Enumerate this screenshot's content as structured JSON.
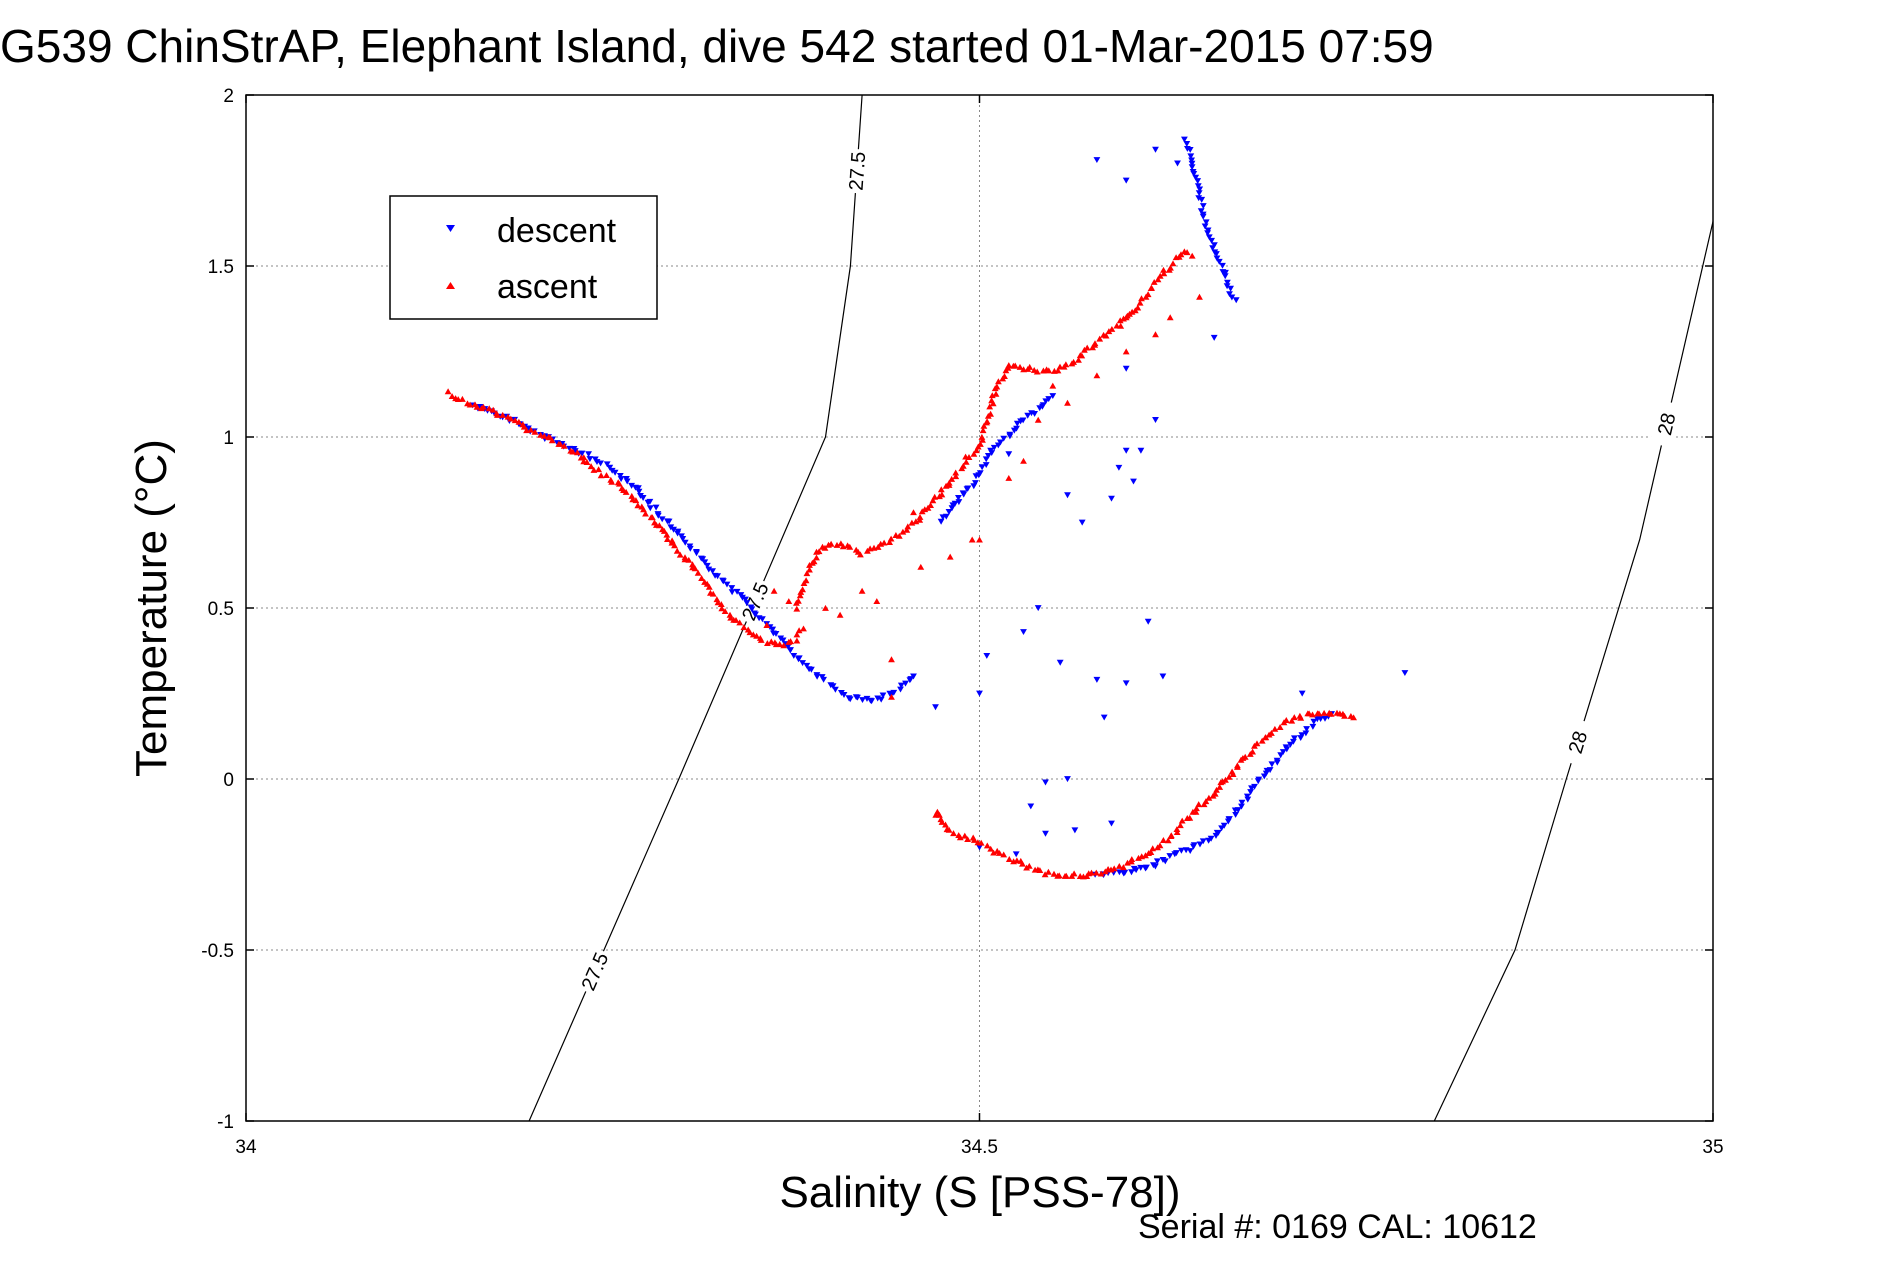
{
  "title": "G539 ChinStrAP, Elephant Island, dive 542 started 01-Mar-2015 07:59",
  "footer": "Serial #: 0169 CAL: 10612",
  "colors": {
    "descent": "#0000ff",
    "ascent": "#ff0000",
    "axis": "#000000",
    "grid": "#888888"
  },
  "chart_data": {
    "type": "scatter",
    "title": "G539 ChinStrAP, Elephant Island, dive 542 started 01-Mar-2015 07:59",
    "xlabel": "Salinity (S [PSS-78])",
    "ylabel": "Temperature (°C)",
    "xlim": [
      34,
      35
    ],
    "ylim": [
      -1,
      2
    ],
    "xticks": [
      34,
      34.5,
      35
    ],
    "xtick_labels": [
      "34",
      "34.5",
      "35"
    ],
    "yticks": [
      -1,
      -0.5,
      0,
      0.5,
      1,
      1.5,
      2
    ],
    "ytick_labels": [
      "-1",
      "-0.5",
      "0",
      "0.5",
      "1",
      "1.5",
      "2"
    ],
    "grid": true,
    "legend_position": "top-left",
    "contour_labels": [
      "27.5",
      "27.5",
      "27.5",
      "28",
      "28"
    ],
    "isopycnals": [
      {
        "label": "27.5",
        "points": [
          [
            34.193,
            -1.0
          ],
          [
            34.295,
            0.0
          ],
          [
            34.395,
            1.0
          ],
          [
            34.412,
            1.5
          ],
          [
            34.42,
            2.0
          ]
        ]
      },
      {
        "label": "28",
        "points": [
          [
            34.81,
            -1.0
          ],
          [
            34.865,
            -0.5
          ],
          [
            34.9,
            0.0
          ],
          [
            34.95,
            0.7
          ],
          [
            35.0,
            1.63
          ]
        ]
      }
    ],
    "series": [
      {
        "name": "descent",
        "marker": "triangle-down",
        "color": "#0000ff",
        "segments": [
          [
            [
              34.155,
              1.09
            ],
            [
              34.175,
              1.06
            ],
            [
              34.195,
              1.02
            ],
            [
              34.215,
              0.98
            ],
            [
              34.235,
              0.94
            ],
            [
              34.255,
              0.89
            ],
            [
              34.27,
              0.83
            ],
            [
              34.28,
              0.78
            ],
            [
              34.29,
              0.74
            ],
            [
              34.3,
              0.69
            ],
            [
              34.31,
              0.65
            ],
            [
              34.32,
              0.6
            ],
            [
              34.33,
              0.56
            ],
            [
              34.34,
              0.52
            ],
            [
              34.35,
              0.47
            ],
            [
              34.36,
              0.43
            ],
            [
              34.37,
              0.38
            ],
            [
              34.38,
              0.34
            ],
            [
              34.39,
              0.3
            ],
            [
              34.4,
              0.27
            ],
            [
              34.41,
              0.24
            ],
            [
              34.42,
              0.23
            ],
            [
              34.43,
              0.23
            ],
            [
              34.44,
              0.25
            ],
            [
              34.45,
              0.28
            ],
            [
              34.455,
              0.3
            ]
          ],
          [
            [
              34.475,
              0.75
            ],
            [
              34.48,
              0.79
            ],
            [
              34.485,
              0.81
            ],
            [
              34.49,
              0.84
            ],
            [
              34.495,
              0.86
            ],
            [
              34.5,
              0.9
            ],
            [
              34.505,
              0.93
            ],
            [
              34.51,
              0.97
            ],
            [
              34.52,
              1.0
            ],
            [
              34.53,
              1.05
            ],
            [
              34.54,
              1.08
            ],
            [
              34.55,
              1.12
            ]
          ],
          [
            [
              34.58,
              -0.28
            ],
            [
              34.6,
              -0.27
            ],
            [
              34.62,
              -0.25
            ],
            [
              34.64,
              -0.21
            ],
            [
              34.66,
              -0.17
            ],
            [
              34.67,
              -0.12
            ],
            [
              34.68,
              -0.07
            ],
            [
              34.69,
              -0.01
            ],
            [
              34.7,
              0.04
            ],
            [
              34.71,
              0.09
            ],
            [
              34.72,
              0.13
            ],
            [
              34.73,
              0.17
            ],
            [
              34.74,
              0.19
            ]
          ],
          [
            [
              34.64,
              1.87
            ],
            [
              34.645,
              1.8
            ],
            [
              34.65,
              1.7
            ],
            [
              34.655,
              1.62
            ],
            [
              34.66,
              1.55
            ],
            [
              34.665,
              1.5
            ],
            [
              34.67,
              1.43
            ],
            [
              34.675,
              1.4
            ]
          ]
        ],
        "scattered": [
          [
            34.58,
            1.81
          ],
          [
            34.6,
            1.75
          ],
          [
            34.62,
            1.84
          ],
          [
            34.635,
            1.8
          ],
          [
            34.66,
            1.29
          ],
          [
            34.6,
            1.2
          ],
          [
            34.62,
            1.05
          ],
          [
            34.61,
            0.96
          ],
          [
            34.595,
            0.91
          ],
          [
            34.605,
            0.87
          ],
          [
            34.59,
            0.82
          ],
          [
            34.6,
            0.96
          ],
          [
            34.52,
            0.95
          ],
          [
            34.56,
            0.83
          ],
          [
            34.57,
            0.75
          ],
          [
            34.54,
            0.5
          ],
          [
            34.505,
            0.36
          ],
          [
            34.53,
            0.43
          ],
          [
            34.555,
            0.34
          ],
          [
            34.58,
            0.29
          ],
          [
            34.6,
            0.28
          ],
          [
            34.615,
            0.46
          ],
          [
            34.625,
            0.3
          ],
          [
            34.585,
            0.18
          ],
          [
            34.5,
            0.25
          ],
          [
            34.47,
            0.21
          ],
          [
            34.56,
            0.0
          ],
          [
            34.545,
            -0.01
          ],
          [
            34.535,
            -0.08
          ],
          [
            34.525,
            -0.22
          ],
          [
            34.5,
            -0.2
          ],
          [
            34.565,
            -0.15
          ],
          [
            34.545,
            -0.16
          ],
          [
            34.59,
            -0.13
          ],
          [
            34.72,
            0.25
          ],
          [
            34.79,
            0.31
          ]
        ]
      },
      {
        "name": "ascent",
        "marker": "triangle-up",
        "color": "#ff0000",
        "segments": [
          [
            [
              34.138,
              1.13
            ],
            [
              34.15,
              1.1
            ],
            [
              34.165,
              1.08
            ],
            [
              34.18,
              1.05
            ],
            [
              34.195,
              1.02
            ],
            [
              34.21,
              0.99
            ],
            [
              34.225,
              0.95
            ],
            [
              34.24,
              0.9
            ],
            [
              34.255,
              0.86
            ],
            [
              34.265,
              0.81
            ],
            [
              34.275,
              0.77
            ],
            [
              34.285,
              0.72
            ],
            [
              34.295,
              0.67
            ],
            [
              34.305,
              0.62
            ],
            [
              34.315,
              0.56
            ],
            [
              34.325,
              0.5
            ],
            [
              34.335,
              0.46
            ],
            [
              34.345,
              0.42
            ],
            [
              34.355,
              0.4
            ],
            [
              34.365,
              0.39
            ],
            [
              34.375,
              0.41
            ],
            [
              34.38,
              0.44
            ]
          ],
          [
            [
              34.375,
              0.5
            ],
            [
              34.38,
              0.56
            ],
            [
              34.385,
              0.62
            ],
            [
              34.39,
              0.67
            ],
            [
              34.4,
              0.69
            ],
            [
              34.41,
              0.68
            ],
            [
              34.42,
              0.66
            ],
            [
              34.43,
              0.68
            ],
            [
              34.44,
              0.7
            ],
            [
              34.45,
              0.73
            ],
            [
              34.46,
              0.77
            ],
            [
              34.47,
              0.82
            ],
            [
              34.48,
              0.87
            ],
            [
              34.49,
              0.93
            ],
            [
              34.5,
              0.98
            ],
            [
              34.505,
              1.05
            ],
            [
              34.51,
              1.12
            ],
            [
              34.515,
              1.17
            ],
            [
              34.52,
              1.21
            ],
            [
              34.535,
              1.2
            ],
            [
              34.55,
              1.19
            ],
            [
              34.565,
              1.22
            ],
            [
              34.58,
              1.28
            ],
            [
              34.595,
              1.33
            ],
            [
              34.61,
              1.39
            ],
            [
              34.62,
              1.45
            ],
            [
              34.63,
              1.5
            ],
            [
              34.635,
              1.53
            ],
            [
              34.64,
              1.54
            ],
            [
              34.645,
              1.53
            ]
          ],
          [
            [
              34.47,
              -0.09
            ],
            [
              34.475,
              -0.13
            ],
            [
              34.48,
              -0.15
            ],
            [
              34.49,
              -0.17
            ],
            [
              34.5,
              -0.18
            ],
            [
              34.51,
              -0.21
            ],
            [
              34.52,
              -0.23
            ],
            [
              34.53,
              -0.25
            ],
            [
              34.54,
              -0.27
            ],
            [
              34.555,
              -0.28
            ],
            [
              34.57,
              -0.28
            ],
            [
              34.585,
              -0.27
            ],
            [
              34.6,
              -0.25
            ],
            [
              34.615,
              -0.22
            ],
            [
              34.63,
              -0.17
            ],
            [
              34.645,
              -0.1
            ],
            [
              34.66,
              -0.04
            ],
            [
              34.67,
              0.01
            ],
            [
              34.68,
              0.06
            ],
            [
              34.69,
              0.1
            ],
            [
              34.7,
              0.14
            ],
            [
              34.71,
              0.17
            ],
            [
              34.725,
              0.19
            ],
            [
              34.74,
              0.19
            ],
            [
              34.755,
              0.18
            ]
          ]
        ],
        "scattered": [
          [
            34.355,
            0.45
          ],
          [
            34.37,
            0.52
          ],
          [
            34.395,
            0.5
          ],
          [
            34.405,
            0.48
          ],
          [
            34.46,
            0.62
          ],
          [
            34.48,
            0.65
          ],
          [
            34.495,
            0.7
          ],
          [
            34.455,
            0.78
          ],
          [
            34.52,
            0.88
          ],
          [
            34.53,
            0.93
          ],
          [
            34.54,
            1.05
          ],
          [
            34.55,
            1.15
          ],
          [
            34.56,
            1.1
          ],
          [
            34.58,
            1.18
          ],
          [
            34.6,
            1.25
          ],
          [
            34.62,
            1.3
          ],
          [
            34.63,
            1.35
          ],
          [
            34.6,
            1.35
          ],
          [
            34.65,
            1.41
          ],
          [
            34.42,
            0.55
          ],
          [
            34.36,
            0.55
          ],
          [
            34.43,
            0.52
          ],
          [
            34.44,
            0.35
          ],
          [
            34.5,
            0.7
          ],
          [
            34.44,
            0.24
          ]
        ]
      }
    ]
  }
}
